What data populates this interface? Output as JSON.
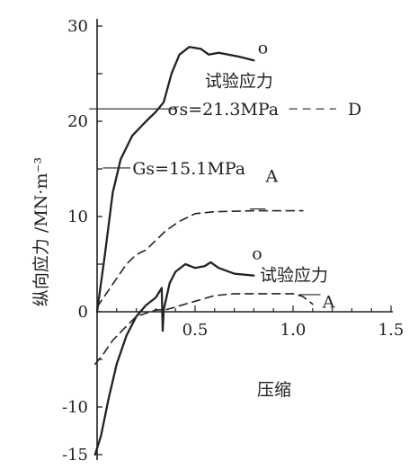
{
  "chart_data": {
    "type": "line",
    "xlabel": "压缩",
    "ylabel": "纵向应力 /MN·m⁻³",
    "xlim": [
      0,
      1.5
    ],
    "ylim": [
      -15,
      30
    ],
    "xticks": [
      {
        "value": 0.5,
        "label": "0.5"
      },
      {
        "value": 1.0,
        "label": "1.0"
      },
      {
        "value": 1.5,
        "label": "1.5"
      }
    ],
    "yticks": [
      {
        "value": -15,
        "label": "-15"
      },
      {
        "value": -10,
        "label": "-10"
      },
      {
        "value": 0,
        "label": "0"
      },
      {
        "value": 10,
        "label": "10"
      },
      {
        "value": 20,
        "label": "20"
      },
      {
        "value": 30,
        "label": "30"
      }
    ],
    "grid": false,
    "series": [
      {
        "style": "solid",
        "points": [
          [
            0,
            0
          ],
          [
            0.04,
            6
          ],
          [
            0.08,
            12.5
          ],
          [
            0.12,
            16
          ],
          [
            0.18,
            18.5
          ],
          [
            0.25,
            20
          ],
          [
            0.3,
            21
          ],
          [
            0.34,
            22
          ],
          [
            0.38,
            25
          ],
          [
            0.42,
            27
          ],
          [
            0.47,
            27.8
          ],
          [
            0.53,
            27.6
          ],
          [
            0.57,
            27
          ],
          [
            0.62,
            27.2
          ],
          [
            0.67,
            27
          ],
          [
            0.72,
            26.8
          ],
          [
            0.76,
            26.6
          ],
          [
            0.8,
            26.4
          ]
        ]
      },
      {
        "style": "dashed",
        "points": [
          [
            0,
            0.5
          ],
          [
            0.05,
            2
          ],
          [
            0.1,
            3.5
          ],
          [
            0.15,
            5
          ],
          [
            0.2,
            6
          ],
          [
            0.25,
            6.5
          ],
          [
            0.3,
            7.5
          ],
          [
            0.35,
            8.5
          ],
          [
            0.42,
            9.5
          ],
          [
            0.5,
            10.3
          ],
          [
            0.6,
            10.5
          ],
          [
            0.8,
            10.6
          ],
          [
            1.0,
            10.6
          ],
          [
            1.05,
            10.6
          ]
        ]
      },
      {
        "style": "solid",
        "points": [
          [
            -0.01,
            -15
          ],
          [
            0.02,
            -13
          ],
          [
            0.06,
            -9
          ],
          [
            0.1,
            -5.5
          ],
          [
            0.15,
            -2.5
          ],
          [
            0.2,
            -0.5
          ],
          [
            0.25,
            0.7
          ],
          [
            0.3,
            1.5
          ],
          [
            0.33,
            2.5
          ],
          [
            0.335,
            -2
          ],
          [
            0.34,
            0.2
          ],
          [
            0.37,
            3
          ],
          [
            0.4,
            4.2
          ],
          [
            0.45,
            5
          ],
          [
            0.5,
            4.6
          ],
          [
            0.55,
            4.8
          ],
          [
            0.58,
            5.2
          ],
          [
            0.62,
            4.6
          ],
          [
            0.7,
            4
          ],
          [
            0.8,
            3.8
          ]
        ]
      },
      {
        "style": "dashed",
        "points": [
          [
            -0.01,
            -5.5
          ],
          [
            0.03,
            -4.5
          ],
          [
            0.08,
            -3
          ],
          [
            0.15,
            -1.5
          ],
          [
            0.2,
            -0.5
          ],
          [
            0.3,
            0.2
          ],
          [
            0.35,
            0.2
          ],
          [
            0.4,
            0.5
          ],
          [
            0.5,
            1.1
          ],
          [
            0.6,
            1.7
          ],
          [
            0.7,
            1.9
          ],
          [
            0.8,
            1.9
          ],
          [
            0.9,
            1.9
          ],
          [
            1.0,
            1.9
          ],
          [
            1.05,
            1.6
          ],
          [
            1.1,
            0.8
          ]
        ]
      }
    ],
    "annotations": [
      {
        "text": "o",
        "x": 0.82,
        "y": 27.8
      },
      {
        "text": "试验应力",
        "x": 0.55,
        "y": 24.3
      },
      {
        "text": "σs=21.3MPa",
        "x": 0.36,
        "y": 21.3
      },
      {
        "text": "D",
        "x": 1.28,
        "y": 21.3
      },
      {
        "text": "Gs=15.1MPa",
        "x": 0.18,
        "y": 15.1
      },
      {
        "text": "A",
        "x": 0.86,
        "y": 14.3
      },
      {
        "text": "o",
        "x": 0.79,
        "y": 6.2
      },
      {
        "text": "试验应力",
        "x": 0.83,
        "y": 3.9
      },
      {
        "text": "A",
        "x": 1.15,
        "y": 1.1
      }
    ],
    "reference_lines": [
      {
        "y": 21.3,
        "x_from": -0.04,
        "x_to": 0.4
      },
      {
        "y": 15.1,
        "x_from": 0.03,
        "x_to": 0.17
      },
      {
        "y": 21.3,
        "x_from": 0.98,
        "x_to": 1.22,
        "style": "dashed"
      },
      {
        "y": 10.8,
        "x_from": 0.78,
        "x_to": 0.86
      },
      {
        "y": 1.8,
        "x_from": 1.03,
        "x_to": 1.14
      }
    ]
  }
}
